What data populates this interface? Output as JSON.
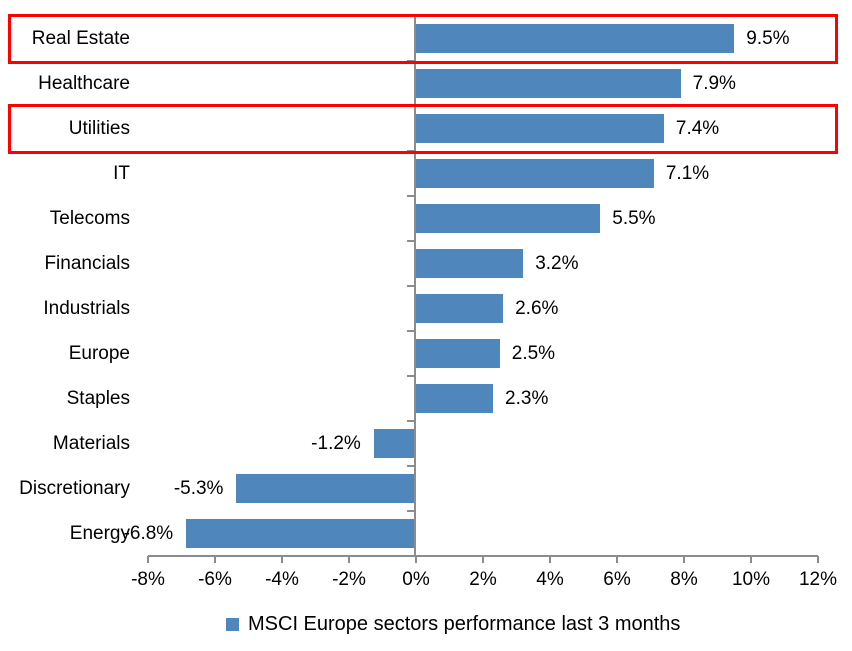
{
  "chart_data": {
    "type": "bar",
    "orientation": "horizontal",
    "categories": [
      "Real Estate",
      "Healthcare",
      "Utilities",
      "IT",
      "Telecoms",
      "Financials",
      "Industrials",
      "Europe",
      "Staples",
      "Materials",
      "Discretionary",
      "Energy"
    ],
    "values": [
      9.5,
      7.9,
      7.4,
      7.1,
      5.5,
      3.2,
      2.6,
      2.5,
      2.3,
      -1.2,
      -5.3,
      -6.8
    ],
    "value_labels": [
      "9.5%",
      "7.9%",
      "7.4%",
      "7.1%",
      "5.5%",
      "3.2%",
      "2.6%",
      "2.5%",
      "2.3%",
      "-1.2%",
      "-5.3%",
      "-6.8%"
    ],
    "x_tick_labels": [
      "-8%",
      "-6%",
      "-4%",
      "-2%",
      "0%",
      "2%",
      "4%",
      "6%",
      "8%",
      "10%",
      "12%"
    ],
    "x_tick_values": [
      -8,
      -6,
      -4,
      -2,
      0,
      2,
      4,
      6,
      8,
      10,
      12
    ],
    "xlim": [
      -8,
      12
    ],
    "grid": false,
    "legend": "MSCI Europe sectors performance last 3 months",
    "legend_position": "bottom",
    "highlighted_categories": [
      "Real Estate",
      "Utilities"
    ],
    "colors": {
      "bar": "#4f87bd",
      "highlight": "#fe0000",
      "axis": "#8c8c8c",
      "text": "#000000"
    }
  }
}
